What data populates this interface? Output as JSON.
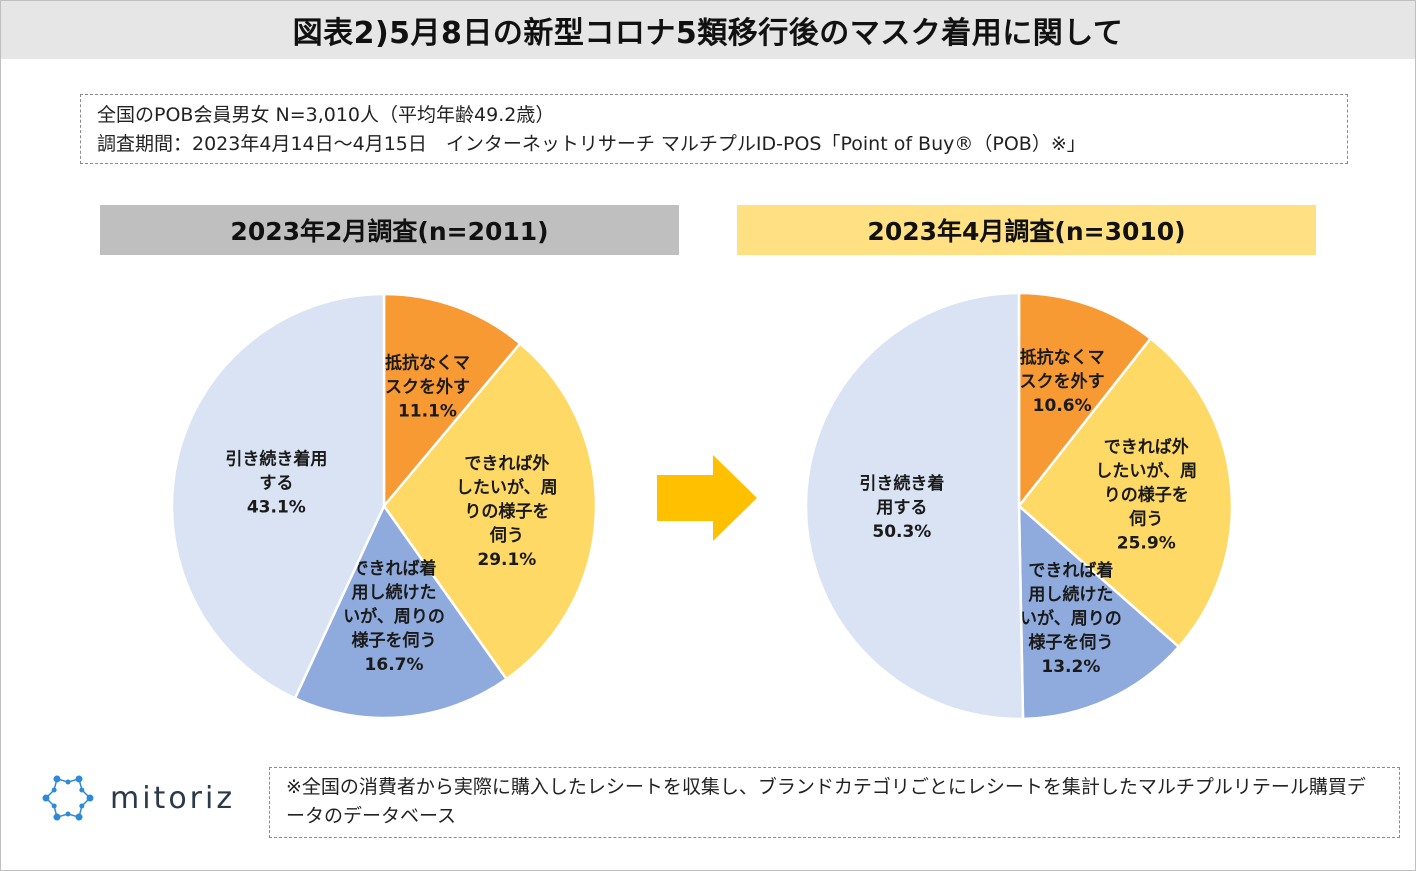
{
  "title": "図表2)5月8日の新型コロナ5類移行後のマスク着用に関して",
  "survey": {
    "line1": "全国のPOB会員男女 N=3,010人（平均年齢49.2歳）",
    "line2": "調査期間：2023年4月14日～4月15日　インターネットリサーチ マルチプルID-POS「Point of Buy®（POB）※」"
  },
  "colors": {
    "orange": "#f79a33",
    "yellow": "#ffd966",
    "blue": "#8faadc",
    "lightblue": "#dae3f3",
    "arrow": "#ffc000",
    "logo_blue": "#2e8ad8"
  },
  "chart_data": [
    {
      "type": "pie",
      "title": "2023年2月調査(n=2011)",
      "slices": [
        {
          "lines": [
            "抵抗なくマ",
            "スクを外す"
          ],
          "value": 11.1,
          "label": "11.1%",
          "color": "#f79a33"
        },
        {
          "lines": [
            "できれば外",
            "したいが、周",
            "りの様子を",
            "伺う"
          ],
          "value": 29.1,
          "label": "29.1%",
          "color": "#ffd966"
        },
        {
          "lines": [
            "できれば着",
            "用し続けた",
            "いが、周りの",
            "様子を伺う"
          ],
          "value": 16.7,
          "label": "16.7%",
          "color": "#8faadc"
        },
        {
          "lines": [
            "引き続き着用",
            "する"
          ],
          "value": 43.1,
          "label": "43.1%",
          "color": "#dae3f3"
        }
      ]
    },
    {
      "type": "pie",
      "title": "2023年4月調査(n=3010)",
      "slices": [
        {
          "lines": [
            "抵抗なくマ",
            "スクを外す"
          ],
          "value": 10.6,
          "label": "10.6%",
          "color": "#f79a33"
        },
        {
          "lines": [
            "できれば外",
            "したいが、周",
            "りの様子を",
            "伺う"
          ],
          "value": 25.9,
          "label": "25.9%",
          "color": "#ffd966"
        },
        {
          "lines": [
            "できれば着",
            "用し続けた",
            "いが、周りの",
            "様子を伺う"
          ],
          "value": 13.2,
          "label": "13.2%",
          "color": "#8faadc"
        },
        {
          "lines": [
            "引き続き着",
            "用する"
          ],
          "value": 50.3,
          "label": "50.3%",
          "color": "#dae3f3"
        }
      ]
    }
  ],
  "logo": {
    "text": "mitoriz"
  },
  "footnote": "※全国の消費者から実際に購入したレシートを収集し、ブランドカテゴリごとにレシートを集計したマルチプルリテール購買データのデータベース"
}
